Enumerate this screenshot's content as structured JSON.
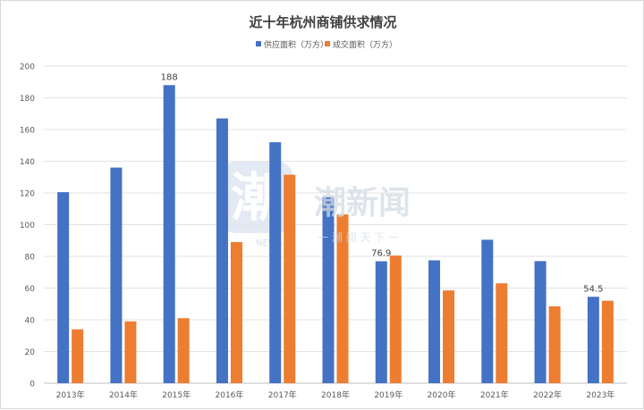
{
  "chart_data": {
    "type": "bar",
    "title": "近十年杭州商铺供求情况",
    "categories": [
      "2013年",
      "2014年",
      "2015年",
      "2016年",
      "2017年",
      "2018年",
      "2019年",
      "2020年",
      "2021年",
      "2022年",
      "2023年"
    ],
    "series": [
      {
        "name": "供应面积（万方）",
        "color": "#4472C4",
        "values": [
          120.5,
          136,
          188,
          167,
          152,
          117.5,
          76.9,
          77.5,
          90.5,
          77,
          54.5
        ]
      },
      {
        "name": "成交面积（万方）",
        "color": "#ED7D31",
        "values": [
          34,
          39,
          41,
          89,
          131.5,
          106.5,
          80.5,
          58.5,
          63,
          48.5,
          52
        ]
      }
    ],
    "data_labels": [
      {
        "series": 0,
        "index": 2,
        "text": "188"
      },
      {
        "series": 0,
        "index": 6,
        "text": "76.9"
      },
      {
        "series": 0,
        "index": 10,
        "text": "54.5"
      }
    ],
    "xlabel": "",
    "ylabel": "",
    "ylim": [
      0,
      200
    ],
    "yticks": [
      "0",
      "20",
      "40",
      "60",
      "80",
      "100",
      "120",
      "140",
      "160",
      "180",
      "200"
    ],
    "legend_position": "top-center",
    "grid": true
  },
  "watermark": {
    "logo_glyph": "潮",
    "logo_sub": "NEWS",
    "name": "潮新闻",
    "slogan": "一 潮 闻 天 下 一"
  }
}
